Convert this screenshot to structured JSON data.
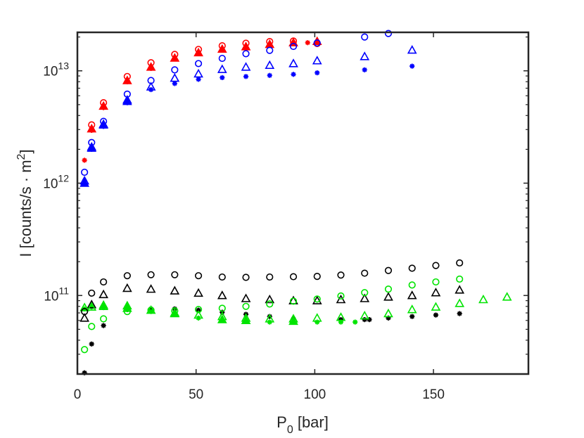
{
  "chart_data": {
    "type": "scatter",
    "title": "",
    "xlabel": {
      "main": "P",
      "sub": "0",
      "rest": " [bar]"
    },
    "ylabel": {
      "main": "I [counts/s · m",
      "sup": "2",
      "rest": "]"
    },
    "x_axis": {
      "range": [
        0,
        190
      ],
      "ticks": [
        0,
        50,
        100,
        150
      ],
      "tick_labels": [
        "0",
        "50",
        "100",
        "150"
      ],
      "scale": "linear"
    },
    "y_axis": {
      "range": [
        20000000000.0,
        22000000000000.0
      ],
      "scale": "log",
      "major_ticks": [
        {
          "value": 100000000000.0,
          "base": "10",
          "exp": "11"
        },
        {
          "value": 1000000000000.0,
          "base": "10",
          "exp": "12"
        },
        {
          "value": 10000000000000.0,
          "base": "10",
          "exp": "13"
        }
      ],
      "minor_ticks": [
        20000000000.0,
        30000000000.0,
        40000000000.0,
        50000000000.0,
        60000000000.0,
        70000000000.0,
        80000000000.0,
        90000000000.0,
        200000000000.0,
        300000000000.0,
        400000000000.0,
        500000000000.0,
        600000000000.0,
        700000000000.0,
        800000000000.0,
        900000000000.0,
        2000000000000.0,
        3000000000000.0,
        4000000000000.0,
        5000000000000.0,
        6000000000000.0,
        7000000000000.0,
        8000000000000.0,
        9000000000000.0,
        20000000000000.0
      ]
    },
    "grid": false,
    "series": [
      {
        "name": "red circles",
        "color": "#ff0000",
        "marker": "circle",
        "points": [
          [
            6,
            3300000000000.0
          ],
          [
            11,
            5200000000000.0
          ],
          [
            21,
            8900000000000.0
          ],
          [
            31,
            11800000000000.0
          ],
          [
            41,
            14000000000000.0
          ],
          [
            51,
            15500000000000.0
          ],
          [
            61,
            16700000000000.0
          ],
          [
            71,
            17600000000000.0
          ],
          [
            81,
            18200000000000.0
          ],
          [
            91,
            18400000000000.0
          ],
          [
            101,
            17500000000000.0
          ]
        ]
      },
      {
        "name": "red filled triangles",
        "color": "#ff0000",
        "marker": "triangle-filled",
        "points": [
          [
            6,
            3050000000000.0
          ],
          [
            11,
            4850000000000.0
          ],
          [
            21,
            8200000000000.0
          ],
          [
            31,
            10800000000000.0
          ],
          [
            41,
            13000000000000.0
          ],
          [
            51,
            14500000000000.0
          ],
          [
            61,
            15600000000000.0
          ],
          [
            71,
            16400000000000.0
          ],
          [
            81,
            17200000000000.0
          ],
          [
            91,
            17800000000000.0
          ],
          [
            101,
            18300000000000.0
          ]
        ]
      },
      {
        "name": "red stars",
        "color": "#ff0000",
        "marker": "star",
        "points": [
          [
            3,
            1600000000000.0
          ],
          [
            6,
            2950000000000.0
          ],
          [
            11,
            4700000000000.0
          ],
          [
            21,
            8000000000000.0
          ],
          [
            31,
            10500000000000.0
          ],
          [
            41,
            12800000000000.0
          ],
          [
            51,
            14300000000000.0
          ],
          [
            61,
            15500000000000.0
          ],
          [
            71,
            16400000000000.0
          ],
          [
            81,
            17100000000000.0
          ],
          [
            91,
            17600000000000.0
          ],
          [
            97,
            17800000000000.0
          ]
        ]
      },
      {
        "name": "blue circles",
        "color": "#0000ff",
        "marker": "circle",
        "points": [
          [
            3,
            1250000000000.0
          ],
          [
            6,
            2300000000000.0
          ],
          [
            11,
            3550000000000.0
          ],
          [
            21,
            6200000000000.0
          ],
          [
            31,
            8200000000000.0
          ],
          [
            41,
            10200000000000.0
          ],
          [
            51,
            11600000000000.0
          ],
          [
            61,
            12900000000000.0
          ],
          [
            71,
            14200000000000.0
          ],
          [
            81,
            15200000000000.0
          ],
          [
            91,
            16500000000000.0
          ],
          [
            101,
            17700000000000.0
          ],
          [
            121,
            20000000000000.0
          ],
          [
            131,
            21500000000000.0
          ]
        ]
      },
      {
        "name": "blue triangles",
        "color": "#0000ff",
        "marker": "triangle",
        "points": [
          [
            3,
            1050000000000.0
          ],
          [
            6,
            2100000000000.0
          ],
          [
            11,
            3350000000000.0
          ],
          [
            21,
            5500000000000.0
          ],
          [
            31,
            7200000000000.0
          ],
          [
            41,
            8600000000000.0
          ],
          [
            51,
            9400000000000.0
          ],
          [
            61,
            10300000000000.0
          ],
          [
            71,
            10800000000000.0
          ],
          [
            81,
            11200000000000.0
          ],
          [
            91,
            11600000000000.0
          ],
          [
            101,
            12300000000000.0
          ],
          [
            121,
            13400000000000.0
          ],
          [
            141,
            15300000000000.0
          ]
        ]
      },
      {
        "name": "blue filled triangles",
        "color": "#0000ff",
        "marker": "triangle-filled",
        "points": [
          [
            3,
            1000000000000.0
          ],
          [
            6,
            2050000000000.0
          ],
          [
            11,
            3300000000000.0
          ],
          [
            21,
            5350000000000.0
          ]
        ]
      },
      {
        "name": "blue stars",
        "color": "#0000ff",
        "marker": "star",
        "points": [
          [
            3,
            1050000000000.0
          ],
          [
            6,
            2000000000000.0
          ],
          [
            11,
            3200000000000.0
          ],
          [
            21,
            5200000000000.0
          ],
          [
            31,
            6800000000000.0
          ],
          [
            41,
            7700000000000.0
          ],
          [
            51,
            8400000000000.0
          ],
          [
            61,
            8700000000000.0
          ],
          [
            71,
            8900000000000.0
          ],
          [
            81,
            9100000000000.0
          ],
          [
            91,
            9300000000000.0
          ],
          [
            101,
            9600000000000.0
          ],
          [
            121,
            10200000000000.0
          ],
          [
            141,
            11000000000000.0
          ]
        ]
      },
      {
        "name": "black circles",
        "color": "#000000",
        "marker": "circle",
        "points": [
          [
            3,
            72000000000.0
          ],
          [
            6,
            105000000000.0
          ],
          [
            11,
            132000000000.0
          ],
          [
            21,
            150000000000.0
          ],
          [
            31,
            153000000000.0
          ],
          [
            41,
            153000000000.0
          ],
          [
            51,
            150000000000.0
          ],
          [
            61,
            146000000000.0
          ],
          [
            71,
            145000000000.0
          ],
          [
            81,
            146000000000.0
          ],
          [
            91,
            147000000000.0
          ],
          [
            101,
            148000000000.0
          ],
          [
            111,
            152000000000.0
          ],
          [
            121,
            158000000000.0
          ],
          [
            131,
            167000000000.0
          ],
          [
            141,
            175000000000.0
          ],
          [
            151,
            185000000000.0
          ],
          [
            161,
            195000000000.0
          ]
        ]
      },
      {
        "name": "black triangles",
        "color": "#000000",
        "marker": "triangle",
        "points": [
          [
            3,
            63000000000.0
          ],
          [
            6,
            83000000000.0
          ],
          [
            11,
            102000000000.0
          ],
          [
            21,
            116000000000.0
          ],
          [
            31,
            114000000000.0
          ],
          [
            41,
            110000000000.0
          ],
          [
            51,
            105000000000.0
          ],
          [
            61,
            100000000000.0
          ],
          [
            71,
            94000000000.0
          ],
          [
            81,
            92000000000.0
          ],
          [
            91,
            90000000000.0
          ],
          [
            101,
            90000000000.0
          ],
          [
            111,
            92000000000.0
          ],
          [
            121,
            94000000000.0
          ],
          [
            131,
            97000000000.0
          ],
          [
            141,
            100000000000.0
          ],
          [
            151,
            106000000000.0
          ],
          [
            161,
            112000000000.0
          ]
        ]
      },
      {
        "name": "black stars",
        "color": "#000000",
        "marker": "star",
        "points": [
          [
            3,
            20500000000.0
          ],
          [
            6,
            37000000000.0
          ],
          [
            11,
            54000000000.0
          ],
          [
            21,
            75000000000.0
          ],
          [
            31,
            76000000000.0
          ],
          [
            41,
            76000000000.0
          ],
          [
            51,
            74000000000.0
          ],
          [
            61,
            71000000000.0
          ],
          [
            71,
            68000000000.0
          ],
          [
            81,
            65000000000.0
          ],
          [
            91,
            62000000000.0
          ],
          [
            111,
            61000000000.0
          ],
          [
            121,
            61000000000.0
          ],
          [
            123,
            61000000000.0
          ],
          [
            131,
            63000000000.0
          ],
          [
            141,
            65000000000.0
          ],
          [
            151,
            67000000000.0
          ],
          [
            161,
            69000000000.0
          ]
        ]
      },
      {
        "name": "green circles",
        "color": "#00e400",
        "marker": "circle",
        "points": [
          [
            3,
            33000000000.0
          ],
          [
            6,
            53000000000.0
          ],
          [
            11,
            62000000000.0
          ],
          [
            21,
            72000000000.0
          ],
          [
            31,
            74000000000.0
          ],
          [
            41,
            73000000000.0
          ],
          [
            51,
            75000000000.0
          ],
          [
            61,
            77000000000.0
          ],
          [
            71,
            80000000000.0
          ],
          [
            81,
            84000000000.0
          ],
          [
            91,
            89000000000.0
          ],
          [
            101,
            93000000000.0
          ],
          [
            111,
            99000000000.0
          ],
          [
            121,
            106000000000.0
          ],
          [
            131,
            114000000000.0
          ],
          [
            141,
            124000000000.0
          ],
          [
            151,
            132000000000.0
          ],
          [
            161,
            140000000000.0
          ]
        ]
      },
      {
        "name": "green triangles",
        "color": "#00e400",
        "marker": "triangle",
        "points": [
          [
            3,
            78000000000.0
          ],
          [
            6,
            79000000000.0
          ],
          [
            11,
            80000000000.0
          ],
          [
            21,
            77000000000.0
          ],
          [
            31,
            74000000000.0
          ],
          [
            41,
            70000000000.0
          ],
          [
            51,
            67000000000.0
          ],
          [
            61,
            65000000000.0
          ],
          [
            71,
            63000000000.0
          ],
          [
            81,
            62000000000.0
          ],
          [
            91,
            62000000000.0
          ],
          [
            101,
            63000000000.0
          ],
          [
            111,
            64000000000.0
          ],
          [
            121,
            66000000000.0
          ],
          [
            131,
            69000000000.0
          ],
          [
            141,
            75000000000.0
          ],
          [
            151,
            79000000000.0
          ],
          [
            161,
            85000000000.0
          ],
          [
            171,
            92000000000.0
          ],
          [
            181,
            97000000000.0
          ]
        ]
      },
      {
        "name": "green filled triangles",
        "color": "#00e400",
        "marker": "triangle-filled",
        "points": [
          [
            11,
            82000000000.0
          ],
          [
            21,
            81000000000.0
          ],
          [
            41,
            69000000000.0
          ],
          [
            61,
            61000000000.0
          ],
          [
            71,
            60000000000.0
          ],
          [
            91,
            59000000000.0
          ]
        ]
      },
      {
        "name": "green stars",
        "color": "#00e400",
        "marker": "star",
        "points": [
          [
            3,
            76000000000.0
          ],
          [
            6,
            79000000000.0
          ],
          [
            11,
            78000000000.0
          ],
          [
            21,
            75000000000.0
          ],
          [
            31,
            72000000000.0
          ],
          [
            41,
            68000000000.0
          ],
          [
            51,
            63000000000.0
          ],
          [
            61,
            60000000000.0
          ],
          [
            71,
            59000000000.0
          ],
          [
            81,
            58000000000.0
          ],
          [
            91,
            58000000000.0
          ],
          [
            101,
            58000000000.0
          ],
          [
            111,
            58000000000.0
          ],
          [
            117,
            58000000000.0
          ]
        ]
      }
    ]
  }
}
